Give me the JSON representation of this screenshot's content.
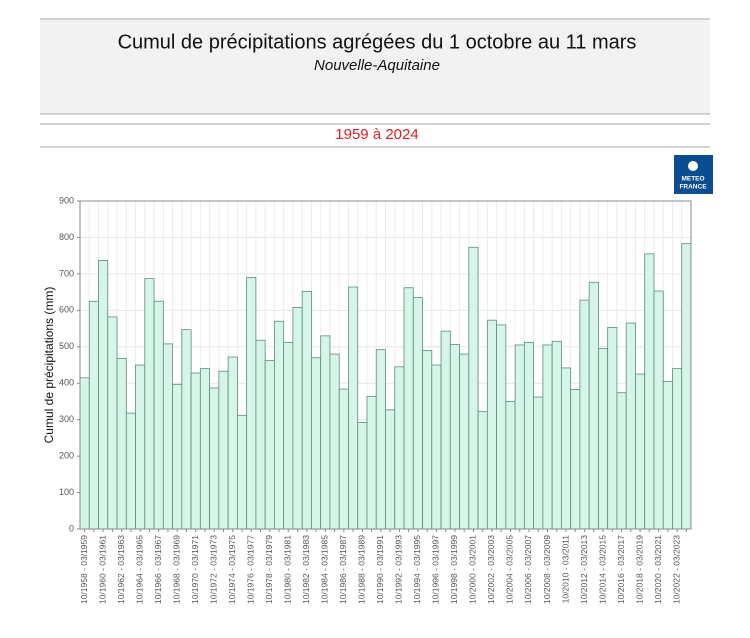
{
  "chart_data": {
    "type": "bar",
    "title": "Cumul de précipitations agrégées du 1 octobre au 11 mars",
    "subtitle": "Nouvelle-Aquitaine",
    "period": "1959 à 2024",
    "logo": [
      "METEO",
      "FRANCE"
    ],
    "y_label": "Cumul de précipitations (mm)",
    "categories": [
      "10/1958 - 03/1959",
      null,
      "10/1960 - 03/1961",
      null,
      "10/1962 - 03/1963",
      null,
      "10/1964 - 03/1965",
      null,
      "10/1966 - 03/1967",
      null,
      "10/1968 - 03/1969",
      null,
      "10/1970 - 03/1971",
      null,
      "10/1972 - 03/1973",
      null,
      "10/1974 - 03/1975",
      null,
      "10/1976 - 03/1977",
      null,
      "10/1978 - 03/1979",
      null,
      "10/1980 - 03/1981",
      null,
      "10/1982 - 03/1983",
      null,
      "10/1984 - 03/1985",
      null,
      "10/1986 - 03/1987",
      null,
      "10/1988 - 03/1989",
      null,
      "10/1990 - 03/1991",
      null,
      "10/1992 - 03/1993",
      null,
      "10/1994 - 03/1995",
      null,
      "10/1996 - 03/1997",
      null,
      "10/1998 - 03/1999",
      null,
      "10/2000 - 03/2001",
      null,
      "10/2002 - 03/2003",
      null,
      "10/2004 - 03/2005",
      null,
      "10/2006 - 03/2007",
      null,
      "10/2008 - 03/2009",
      null,
      "10/2010 - 03/2011",
      null,
      "10/2012 - 03/2013",
      null,
      "10/2014 - 03/2015",
      null,
      "10/2016 - 03/2017",
      null,
      "10/2018 - 03/2019",
      null,
      "10/2020 - 03/2021",
      null,
      "10/2022 - 03/2023",
      null
    ],
    "values": [
      415,
      625,
      737,
      582,
      468,
      318,
      450,
      687,
      625,
      508,
      397,
      547,
      428,
      440,
      387,
      433,
      472,
      312,
      690,
      518,
      462,
      570,
      512,
      608,
      652,
      470,
      530,
      480,
      384,
      664,
      292,
      364,
      492,
      327,
      445,
      662,
      635,
      490,
      450,
      543,
      506,
      480,
      773,
      322,
      573,
      560,
      350,
      505,
      512,
      362,
      505,
      515,
      442,
      383,
      628,
      677,
      495,
      553,
      374,
      565,
      425,
      755,
      653,
      405,
      440,
      783
    ],
    "color": "#d4f5e7",
    "edge_color": "#5f8c7b",
    "ylim": [
      0,
      900
    ],
    "yticks": [
      0,
      100,
      200,
      300,
      400,
      500,
      600,
      700,
      800,
      900
    ],
    "grid": true
  }
}
